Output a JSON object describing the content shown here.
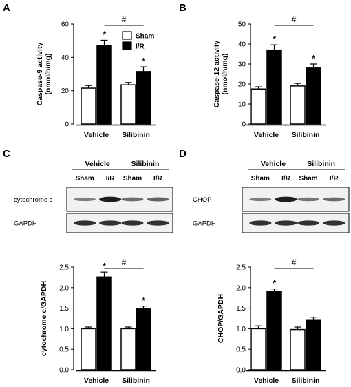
{
  "panels": [
    {
      "letter": "A"
    },
    {
      "letter": "B"
    },
    {
      "letter": "C"
    },
    {
      "letter": "D"
    }
  ],
  "blots": [
    {
      "groups": [
        "Vehicle",
        "Silibinin"
      ],
      "lanes": [
        "Sham",
        "I/R",
        "Sham",
        "I/R"
      ],
      "proteins": [
        "cytochrome c",
        "GAPDH"
      ],
      "band_intensity": [
        [
          0.45,
          0.95,
          0.55,
          0.6
        ],
        [
          0.85,
          0.85,
          0.85,
          0.85
        ]
      ]
    },
    {
      "groups": [
        "Vehicle",
        "Silibinin"
      ],
      "lanes": [
        "Sham",
        "I/R",
        "Sham",
        "I/R"
      ],
      "proteins": [
        "CHOP",
        "GAPDH"
      ],
      "band_intensity": [
        [
          0.45,
          0.95,
          0.5,
          0.55
        ],
        [
          0.85,
          0.85,
          0.85,
          0.85
        ]
      ]
    }
  ],
  "chart_data": [
    {
      "type": "bar",
      "categories": [
        "Vehicle",
        "Silibinin"
      ],
      "series": [
        {
          "name": "Sham",
          "values": [
            21.5,
            23.5
          ],
          "errors": [
            1.6,
            1.4
          ],
          "color": "#ffffff"
        },
        {
          "name": "I/R",
          "values": [
            47,
            31.5
          ],
          "errors": [
            3.3,
            2.8
          ],
          "color": "#000000"
        }
      ],
      "significance": [
        "*",
        "*"
      ],
      "hash": "#",
      "ylabel": "Caspase-9 activity\n(nmol/h/mg)",
      "ylim": [
        0,
        60
      ],
      "yticks": [
        "0",
        "20",
        "40",
        "60"
      ],
      "legend": "top-right"
    },
    {
      "type": "bar",
      "categories": [
        "Vehicle",
        "Silibinin"
      ],
      "series": [
        {
          "name": "Sham",
          "values": [
            17.5,
            19
          ],
          "errors": [
            1.1,
            1.3
          ],
          "color": "#ffffff"
        },
        {
          "name": "I/R",
          "values": [
            37,
            28
          ],
          "errors": [
            2.6,
            2.0
          ],
          "color": "#000000"
        }
      ],
      "significance": [
        "*",
        "*"
      ],
      "hash": "#",
      "ylabel": "Caspase-12 activity\n(nmol/h/mg)",
      "ylim": [
        0,
        50
      ],
      "yticks": [
        "0",
        "10",
        "20",
        "30",
        "40",
        "50"
      ]
    },
    {
      "type": "bar",
      "categories": [
        "Vehicle",
        "Silibinin"
      ],
      "series": [
        {
          "name": "Sham",
          "values": [
            1.0,
            1.0
          ],
          "errors": [
            0.04,
            0.04
          ],
          "color": "#ffffff"
        },
        {
          "name": "I/R",
          "values": [
            2.26,
            1.48
          ],
          "errors": [
            0.12,
            0.07
          ],
          "color": "#000000"
        }
      ],
      "significance": [
        "*",
        "*"
      ],
      "hash": "#",
      "ylabel": "cytochrome c/GAPDH",
      "ylim": [
        0,
        2.5
      ],
      "yticks": [
        "0.0",
        "0.5",
        "1.0",
        "1.5",
        "2.0",
        "2.5"
      ]
    },
    {
      "type": "bar",
      "categories": [
        "Vehicle",
        "Silibinin"
      ],
      "series": [
        {
          "name": "Sham",
          "values": [
            1.0,
            0.98
          ],
          "errors": [
            0.07,
            0.06
          ],
          "color": "#ffffff"
        },
        {
          "name": "I/R",
          "values": [
            1.9,
            1.22
          ],
          "errors": [
            0.07,
            0.06
          ],
          "color": "#000000"
        }
      ],
      "significance": [
        "*",
        ""
      ],
      "hash": "#",
      "ylabel": "CHOP/GAPDH",
      "ylim": [
        0,
        2.5
      ],
      "yticks": [
        "0.0",
        "0.5",
        "1.0",
        "1.5",
        "2.0",
        "2.5"
      ]
    }
  ]
}
